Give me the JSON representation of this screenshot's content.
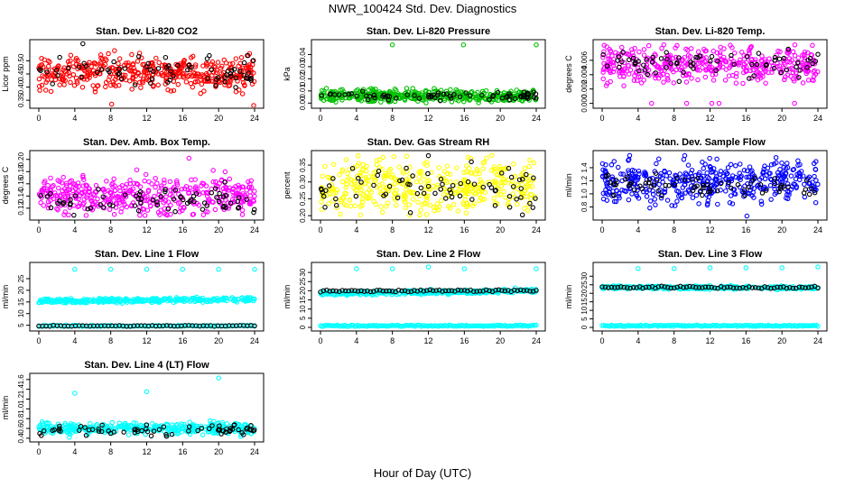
{
  "figure": {
    "title": "NWR_100424  Std. Dev. Diagnostics",
    "xlabel": "Hour of Day (UTC)"
  },
  "chart_data": [
    {
      "type": "scatter",
      "title": "Stan. Dev. Li-820 CO2",
      "ylabel": "Licor ppm",
      "xlim": [
        0,
        24
      ],
      "ylim": [
        0.33,
        0.57
      ],
      "xticks": [
        "0",
        "4",
        "8",
        "12",
        "16",
        "20",
        "24"
      ],
      "yticks": [
        {
          "v": 0.35,
          "label": "0.35"
        },
        {
          "v": 0.4,
          "label": "0.40"
        },
        {
          "v": 0.45,
          "label": "0.45"
        },
        {
          "v": 0.5,
          "label": "0.50"
        }
      ],
      "series": [
        {
          "color": "#ff0000",
          "mode": "cloud",
          "count": 420,
          "center": 0.455,
          "spread": 0.032,
          "outliers": [
            [
              8.1,
              0.335
            ],
            [
              23.9,
              0.33
            ]
          ]
        },
        {
          "color": "#000000",
          "mode": "cloud",
          "count": 70,
          "center": 0.455,
          "spread": 0.028,
          "outliers": [
            [
              4.9,
              0.565
            ],
            [
              23.2,
              0.52
            ]
          ]
        }
      ]
    },
    {
      "type": "scatter",
      "title": "Stan. Dev. Li-820 Pressure",
      "ylabel": "kPa",
      "xlim": [
        0,
        24
      ],
      "ylim": [
        -0.002,
        0.05
      ],
      "xticks": [
        "0",
        "4",
        "8",
        "12",
        "16",
        "20",
        "24"
      ],
      "yticks": [
        {
          "v": 0.0,
          "label": "0.00"
        },
        {
          "v": 0.01,
          "label": "0.01"
        },
        {
          "v": 0.02,
          "label": "0.02"
        },
        {
          "v": 0.03,
          "label": "0.03"
        },
        {
          "v": 0.04,
          "label": "0.04"
        }
      ],
      "series": [
        {
          "color": "#00c000",
          "mode": "cloud",
          "count": 420,
          "center": 0.006,
          "spread": 0.0025,
          "outliers": [
            [
              8.0,
              0.048
            ],
            [
              15.9,
              0.048
            ],
            [
              24.0,
              0.048
            ]
          ]
        },
        {
          "color": "#000000",
          "mode": "cloud",
          "count": 70,
          "center": 0.006,
          "spread": 0.002,
          "outliers": []
        }
      ]
    },
    {
      "type": "scatter",
      "title": "Stan. Dev. Li-820 Temp.",
      "ylabel": "degrees C",
      "xlim": [
        0,
        24
      ],
      "ylim": [
        -0.0003,
        0.0085
      ],
      "xticks": [
        "0",
        "4",
        "8",
        "12",
        "16",
        "20",
        "24"
      ],
      "yticks": [
        {
          "v": 0.0,
          "label": "0.000"
        },
        {
          "v": 0.002,
          "label": "0.002"
        },
        {
          "v": 0.004,
          "label": "0.004"
        },
        {
          "v": 0.006,
          "label": "0.006"
        }
      ],
      "series": [
        {
          "color": "#ff00ff",
          "mode": "cloud",
          "count": 420,
          "center": 0.0055,
          "spread": 0.0013,
          "outliers": [
            [
              5.5,
              0.0
            ],
            [
              9.4,
              0.0
            ],
            [
              12.2,
              0.0
            ],
            [
              13.0,
              0.0
            ],
            [
              21.4,
              0.0
            ]
          ]
        },
        {
          "color": "#000000",
          "mode": "cloud",
          "count": 70,
          "center": 0.0056,
          "spread": 0.0009,
          "outliers": []
        }
      ]
    },
    {
      "type": "scatter",
      "title": "Stan. Dev. Amb. Box Temp.",
      "ylabel": "degrees C",
      "xlim": [
        0,
        24
      ],
      "ylim": [
        0.105,
        0.21
      ],
      "xticks": [
        "0",
        "4",
        "8",
        "12",
        "16",
        "20",
        "24"
      ],
      "yticks": [
        {
          "v": 0.12,
          "label": "0.12"
        },
        {
          "v": 0.14,
          "label": "0.14"
        },
        {
          "v": 0.16,
          "label": "0.16"
        },
        {
          "v": 0.18,
          "label": "0.18"
        },
        {
          "v": 0.2,
          "label": "0.20"
        }
      ],
      "series": [
        {
          "color": "#ff00ff",
          "mode": "cloud",
          "count": 420,
          "center": 0.14,
          "spread": 0.016,
          "outliers": [
            [
              16.7,
              0.202
            ],
            [
              19.4,
              0.182
            ]
          ]
        },
        {
          "color": "#000000",
          "mode": "cloud",
          "count": 70,
          "center": 0.133,
          "spread": 0.011,
          "outliers": [
            [
              23.9,
              0.113
            ]
          ]
        }
      ]
    },
    {
      "type": "scatter",
      "title": "Stan. Dev. Gas Stream RH",
      "ylabel": "percent",
      "xlim": [
        0,
        24
      ],
      "ylim": [
        0.195,
        0.385
      ],
      "xticks": [
        "0",
        "4",
        "8",
        "12",
        "16",
        "20",
        "24"
      ],
      "yticks": [
        {
          "v": 0.2,
          "label": "0.20"
        },
        {
          "v": 0.25,
          "label": "0.25"
        },
        {
          "v": 0.3,
          "label": "0.30"
        },
        {
          "v": 0.35,
          "label": "0.35"
        }
      ],
      "series": [
        {
          "color": "#ffff00",
          "mode": "cloud",
          "count": 420,
          "center": 0.29,
          "spread": 0.04,
          "outliers": []
        },
        {
          "color": "#000000",
          "mode": "cloud",
          "count": 70,
          "center": 0.285,
          "spread": 0.032,
          "outliers": [
            [
              12.0,
              0.378
            ],
            [
              0.5,
              0.225
            ]
          ]
        }
      ]
    },
    {
      "type": "scatter",
      "title": "Stan. Dev. Sample Flow",
      "ylabel": "ml/min",
      "xlim": [
        0,
        24
      ],
      "ylim": [
        0.64,
        1.62
      ],
      "xticks": [
        "0",
        "4",
        "8",
        "12",
        "16",
        "20",
        "24"
      ],
      "yticks": [
        {
          "v": 0.8,
          "label": "0.8"
        },
        {
          "v": 1.0,
          "label": "1.0"
        },
        {
          "v": 1.2,
          "label": "1.2"
        },
        {
          "v": 1.4,
          "label": "1.4"
        }
      ],
      "series": [
        {
          "color": "#0000ff",
          "mode": "cloud",
          "count": 420,
          "center": 1.18,
          "spread": 0.16,
          "outliers": [
            [
              16.1,
              0.66
            ]
          ]
        },
        {
          "color": "#000000",
          "mode": "cloud",
          "count": 70,
          "center": 1.12,
          "spread": 0.1,
          "outliers": []
        }
      ]
    },
    {
      "type": "scatter",
      "title": "Stan. Dev. Line 1 Flow",
      "ylabel": "ml/min",
      "xlim": [
        0,
        24
      ],
      "ylim": [
        3.7,
        30.8
      ],
      "xticks": [
        "0",
        "4",
        "8",
        "12",
        "16",
        "20",
        "24"
      ],
      "yticks": [
        {
          "v": 5,
          "label": "5"
        },
        {
          "v": 10,
          "label": "10"
        },
        {
          "v": 15,
          "label": "15"
        },
        {
          "v": 20,
          "label": "20"
        },
        {
          "v": 25,
          "label": "25"
        }
      ],
      "series": [
        {
          "color": "#00ffff",
          "mode": "band",
          "count": 320,
          "start": 15.3,
          "end": 16.2,
          "spread": 0.5,
          "outliers": [
            [
              4.0,
              29.0
            ],
            [
              8.0,
              29.0
            ],
            [
              12.0,
              29.0
            ],
            [
              16.0,
              29.0
            ],
            [
              20.0,
              29.0
            ],
            [
              24.0,
              29.0
            ]
          ]
        },
        {
          "color": "#00ffff",
          "mode": "row",
          "count": 120,
          "start": 4.5,
          "end": 4.8,
          "spread": 0.12,
          "outliers": []
        },
        {
          "color": "#000000",
          "mode": "row",
          "count": 60,
          "start": 4.6,
          "end": 4.9,
          "spread": 0.1,
          "outliers": []
        }
      ]
    },
    {
      "type": "scatter",
      "title": "Stan. Dev. Line 2 Flow",
      "ylabel": "ml/min",
      "xlim": [
        0,
        24
      ],
      "ylim": [
        -0.5,
        34
      ],
      "xticks": [
        "0",
        "4",
        "8",
        "12",
        "16",
        "20",
        "24"
      ],
      "yticks": [
        {
          "v": 0,
          "label": "0"
        },
        {
          "v": 5,
          "label": "5"
        },
        {
          "v": 10,
          "label": "10"
        },
        {
          "v": 15,
          "label": "15"
        },
        {
          "v": 20,
          "label": "20"
        },
        {
          "v": 25,
          "label": "25"
        },
        {
          "v": 30,
          "label": "30"
        }
      ],
      "series": [
        {
          "color": "#00ffff",
          "mode": "band",
          "count": 320,
          "start": 18.6,
          "end": 19.9,
          "spread": 0.6,
          "outliers": [
            [
              4.0,
              32.0
            ],
            [
              8.0,
              32.0
            ],
            [
              12.0,
              33.0
            ],
            [
              16.0,
              32.0
            ],
            [
              24.0,
              32.0
            ]
          ]
        },
        {
          "color": "#00ffff",
          "mode": "row",
          "count": 140,
          "start": 0.3,
          "end": 0.3,
          "spread": 0.08,
          "outliers": []
        },
        {
          "color": "#000000",
          "mode": "row",
          "count": 70,
          "start": 19.8,
          "end": 20.2,
          "spread": 0.3,
          "outliers": []
        }
      ]
    },
    {
      "type": "scatter",
      "title": "Stan. Dev. Line 3 Flow",
      "ylabel": "ml/min",
      "xlim": [
        0,
        24
      ],
      "ylim": [
        -0.5,
        36.5
      ],
      "xticks": [
        "0",
        "4",
        "8",
        "12",
        "16",
        "20",
        "24"
      ],
      "yticks": [
        {
          "v": 0,
          "label": "0"
        },
        {
          "v": 5,
          "label": "5"
        },
        {
          "v": 10,
          "label": "10"
        },
        {
          "v": 15,
          "label": "15"
        },
        {
          "v": 20,
          "label": "20"
        },
        {
          "v": 25,
          "label": "25"
        },
        {
          "v": 30,
          "label": "30"
        }
      ],
      "series": [
        {
          "color": "#00ffff",
          "mode": "band",
          "count": 320,
          "start": 23.5,
          "end": 23.2,
          "spread": 0.5,
          "outliers": [
            [
              4.0,
              34.5
            ],
            [
              8.0,
              34.5
            ],
            [
              12.0,
              35.0
            ],
            [
              16.0,
              35.0
            ],
            [
              20.0,
              35.0
            ],
            [
              24.0,
              35.5
            ]
          ]
        },
        {
          "color": "#00ffff",
          "mode": "row",
          "count": 140,
          "start": 0.3,
          "end": 0.3,
          "spread": 0.08,
          "outliers": []
        },
        {
          "color": "#000000",
          "mode": "row",
          "count": 70,
          "start": 23.6,
          "end": 23.3,
          "spread": 0.35,
          "outliers": []
        }
      ]
    },
    {
      "type": "scatter",
      "title": "Stan. Dev. Line 4 (LT) Flow",
      "ylabel": "ml/min",
      "xlim": [
        0,
        24
      ],
      "ylim": [
        0.38,
        1.67
      ],
      "xticks": [
        "0",
        "4",
        "8",
        "12",
        "16",
        "20",
        "24"
      ],
      "yticks": [
        {
          "v": 0.4,
          "label": "0.4"
        },
        {
          "v": 0.6,
          "label": "0.6"
        },
        {
          "v": 0.8,
          "label": "0.8"
        },
        {
          "v": 1.0,
          "label": "1.0"
        },
        {
          "v": 1.2,
          "label": "1.2"
        },
        {
          "v": 1.4,
          "label": "1.4"
        },
        {
          "v": 1.6,
          "label": "1.6"
        }
      ],
      "series": [
        {
          "color": "#00ffff",
          "mode": "cloud",
          "count": 420,
          "center": 0.6,
          "spread": 0.055,
          "outliers": [
            [
              4.0,
              1.32
            ],
            [
              12.0,
              1.35
            ],
            [
              20.0,
              1.63
            ],
            [
              3.4,
              0.42
            ]
          ]
        },
        {
          "color": "#000000",
          "mode": "cloud",
          "count": 70,
          "center": 0.57,
          "spread": 0.055,
          "outliers": [
            [
              14.2,
              0.44
            ]
          ]
        }
      ]
    }
  ]
}
